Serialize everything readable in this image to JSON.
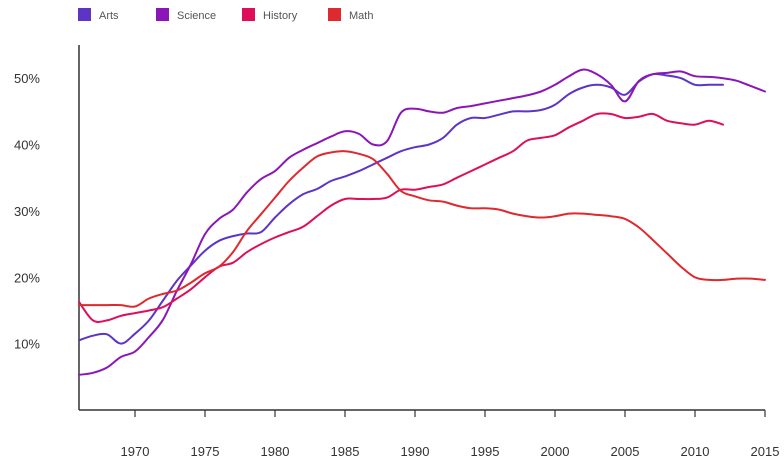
{
  "chart_data": {
    "type": "line",
    "title": "",
    "xlabel": "",
    "ylabel": "",
    "xlim": [
      1966,
      2015
    ],
    "ylim": [
      0,
      55
    ],
    "grid": false,
    "legend_position": "top-left",
    "x_ticks": [
      1970,
      1975,
      1980,
      1985,
      1990,
      1995,
      2000,
      2005,
      2010,
      2015
    ],
    "x_tick_labels": [
      "1970",
      "1975",
      "1980",
      "1985",
      "1990",
      "1995",
      "2000",
      "2005",
      "2010",
      "2015"
    ],
    "y_ticks": [
      10,
      20,
      30,
      40,
      50
    ],
    "y_tick_labels": [
      "10%",
      "20%",
      "30%",
      "40%",
      "50%"
    ],
    "series": [
      {
        "name": "Arts",
        "color": "#5c35c7",
        "x": [
          1966,
          1967,
          1968,
          1969,
          1970,
          1971,
          1972,
          1973,
          1974,
          1975,
          1976,
          1977,
          1978,
          1979,
          1980,
          1981,
          1982,
          1983,
          1984,
          1985,
          1986,
          1987,
          1988,
          1989,
          1990,
          1991,
          1992,
          1993,
          1994,
          1995,
          1996,
          1997,
          1998,
          1999,
          2000,
          2001,
          2002,
          2003,
          2004,
          2005,
          2006,
          2007,
          2008,
          2009,
          2010,
          2011,
          2012
        ],
        "y": [
          10.5,
          11.2,
          11.4,
          10.0,
          11.5,
          13.5,
          16.5,
          19.5,
          21.8,
          24.0,
          25.5,
          26.2,
          26.6,
          26.8,
          29.0,
          31.0,
          32.5,
          33.3,
          34.5,
          35.2,
          36.0,
          37.0,
          38.0,
          39.0,
          39.6,
          40.0,
          41.0,
          43.0,
          44.0,
          44.0,
          44.5,
          45.0,
          45.0,
          45.2,
          46.0,
          47.6,
          48.6,
          49.0,
          48.6,
          47.5,
          49.5,
          50.6,
          50.4,
          50.0,
          49.0,
          49.0,
          49.0
        ]
      },
      {
        "name": "Science",
        "color": "#8b16b8",
        "x": [
          1966,
          1967,
          1968,
          1969,
          1970,
          1971,
          1972,
          1973,
          1974,
          1975,
          1976,
          1977,
          1978,
          1979,
          1980,
          1981,
          1982,
          1983,
          1984,
          1985,
          1986,
          1987,
          1988,
          1989,
          1990,
          1991,
          1992,
          1993,
          1994,
          1995,
          1996,
          1997,
          1998,
          1999,
          2000,
          2001,
          2002,
          2003,
          2004,
          2005,
          2006,
          2007,
          2008,
          2009,
          2010,
          2011,
          2012,
          2013,
          2014,
          2015
        ],
        "y": [
          5.3,
          5.6,
          6.4,
          8.0,
          8.8,
          11.0,
          13.6,
          18.0,
          22.0,
          26.5,
          28.8,
          30.2,
          32.8,
          34.8,
          36.0,
          38.0,
          39.2,
          40.2,
          41.2,
          42.0,
          41.6,
          40.0,
          40.5,
          44.8,
          45.4,
          45.0,
          44.8,
          45.5,
          45.8,
          46.2,
          46.6,
          47.0,
          47.4,
          48.0,
          49.0,
          50.3,
          51.3,
          50.6,
          49.0,
          46.5,
          49.6,
          50.6,
          50.8,
          51.0,
          50.3,
          50.2,
          50.0,
          49.6,
          48.8,
          48.0
        ]
      },
      {
        "name": "History",
        "color": "#de0f5a",
        "x": [
          1966,
          1967,
          1968,
          1969,
          1970,
          1971,
          1972,
          1973,
          1974,
          1975,
          1976,
          1977,
          1978,
          1979,
          1980,
          1981,
          1982,
          1983,
          1984,
          1985,
          1986,
          1987,
          1988,
          1989,
          1990,
          1991,
          1992,
          1993,
          1994,
          1995,
          1996,
          1997,
          1998,
          1999,
          2000,
          2001,
          2002,
          2003,
          2004,
          2005,
          2006,
          2007,
          2008,
          2009,
          2010,
          2011,
          2012
        ],
        "y": [
          16.3,
          13.5,
          13.5,
          14.2,
          14.6,
          15.0,
          15.5,
          16.8,
          18.2,
          20.0,
          21.6,
          22.2,
          23.8,
          25.0,
          26.0,
          26.8,
          27.6,
          29.2,
          30.8,
          31.8,
          31.8,
          31.8,
          32.0,
          33.2,
          33.2,
          33.6,
          34.0,
          35.0,
          36.0,
          37.0,
          38.0,
          39.0,
          40.6,
          41.0,
          41.4,
          42.6,
          43.6,
          44.6,
          44.6,
          44.0,
          44.2,
          44.6,
          43.6,
          43.2,
          43.0,
          43.6,
          43.0
        ]
      },
      {
        "name": "Math",
        "color": "#e0282f",
        "x": [
          1966,
          1967,
          1968,
          1969,
          1970,
          1971,
          1972,
          1973,
          1974,
          1975,
          1976,
          1977,
          1978,
          1979,
          1980,
          1981,
          1982,
          1983,
          1984,
          1985,
          1986,
          1987,
          1988,
          1989,
          1990,
          1991,
          1992,
          1993,
          1994,
          1995,
          1996,
          1997,
          1998,
          1999,
          2000,
          2001,
          2002,
          2003,
          2004,
          2005,
          2006,
          2007,
          2008,
          2009,
          2010,
          2011,
          2012,
          2013,
          2014,
          2015
        ],
        "y": [
          15.8,
          15.8,
          15.8,
          15.8,
          15.6,
          16.8,
          17.5,
          18.0,
          19.2,
          20.6,
          21.6,
          23.8,
          27.0,
          29.5,
          32.0,
          34.5,
          36.5,
          38.2,
          38.8,
          39.0,
          38.6,
          37.8,
          35.6,
          33.0,
          32.2,
          31.6,
          31.4,
          30.8,
          30.4,
          30.4,
          30.2,
          29.6,
          29.2,
          29.0,
          29.2,
          29.6,
          29.6,
          29.4,
          29.2,
          28.8,
          27.5,
          25.6,
          23.6,
          21.6,
          20.0,
          19.6,
          19.6,
          19.8,
          19.8,
          19.6
        ]
      }
    ]
  }
}
